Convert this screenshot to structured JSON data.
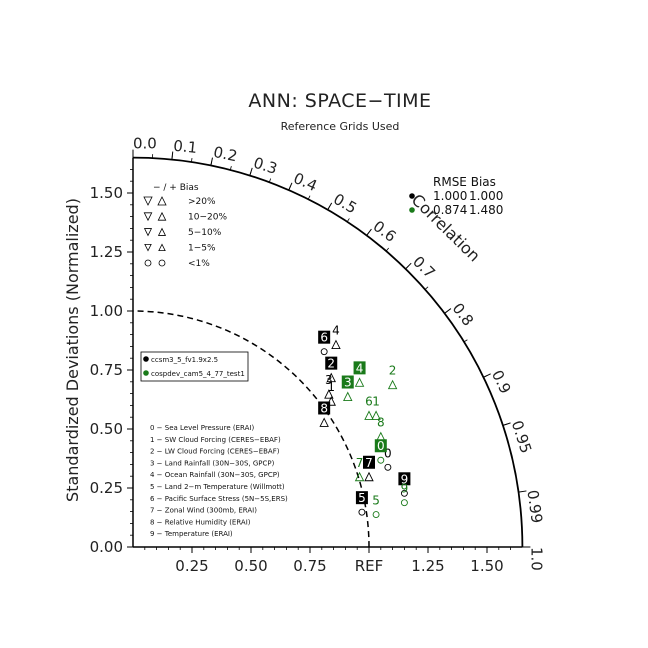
{
  "chart_data": {
    "type": "scatter",
    "subtype": "taylor-diagram",
    "title": "ANN: SPACE−TIME",
    "subtitle": "Reference Grids Used",
    "ylabel": "Standardized Deviations (Normalized)",
    "corr_axis_label": "Correlation",
    "std_range": [
      0,
      1.65
    ],
    "std_ticks": [
      {
        "value": 0.0,
        "label": "0.00"
      },
      {
        "value": 0.25,
        "label": "0.25"
      },
      {
        "value": 0.5,
        "label": "0.50"
      },
      {
        "value": 0.75,
        "label": "0.75"
      },
      {
        "value": 1.0,
        "label": "1.00"
      },
      {
        "value": 1.25,
        "label": "1.25"
      },
      {
        "value": 1.5,
        "label": "1.50"
      }
    ],
    "x_ticks": [
      {
        "value": 0.25,
        "label": "0.25"
      },
      {
        "value": 0.5,
        "label": "0.50"
      },
      {
        "value": 0.75,
        "label": "0.75"
      },
      {
        "value": 1.0,
        "label": "REF"
      },
      {
        "value": 1.25,
        "label": "1.25"
      },
      {
        "value": 1.5,
        "label": "1.50"
      }
    ],
    "corr_ticks": [
      {
        "value": 0.0,
        "label": "0.0"
      },
      {
        "value": 0.1,
        "label": "0.1"
      },
      {
        "value": 0.2,
        "label": "0.2"
      },
      {
        "value": 0.3,
        "label": "0.3"
      },
      {
        "value": 0.4,
        "label": "0.4"
      },
      {
        "value": 0.5,
        "label": "0.5"
      },
      {
        "value": 0.6,
        "label": "0.6"
      },
      {
        "value": 0.7,
        "label": "0.7"
      },
      {
        "value": 0.8,
        "label": "0.8"
      },
      {
        "value": 0.9,
        "label": "0.9"
      },
      {
        "value": 0.95,
        "label": "0.95"
      },
      {
        "value": 0.99,
        "label": "0.99"
      },
      {
        "value": 1.0,
        "label": "1.0"
      }
    ],
    "reference_arc_std": 1.0,
    "bias_legend": {
      "header": "− / +     Bias",
      "rows": [
        {
          "label": ">20%",
          "size": 1.0
        },
        {
          "label": "10−20%",
          "size": 0.8
        },
        {
          "label": "5−10%",
          "size": 0.62
        },
        {
          "label": "1−5%",
          "size": 0.42
        },
        {
          "label": "<1%",
          "size": 0.5,
          "circle": true
        }
      ]
    },
    "rmse_bias": {
      "header": "RMSE  Bias",
      "rows": [
        {
          "rmse": "1.000",
          "bias": "1.000",
          "color": "#000000"
        },
        {
          "rmse": "0.874",
          "bias": "1.480",
          "color": "#1a7a1a"
        }
      ]
    },
    "cases": [
      {
        "name": "ccsm3_5_fv1.9x2.5",
        "color": "#000000"
      },
      {
        "name": "cospdev_cam5_4_77_test1",
        "color": "#1a7a1a"
      }
    ],
    "variables": [
      "0 − Sea Level Pressure (ERAI)",
      "1 − SW Cloud Forcing (CERES−EBAF)",
      "2 − LW Cloud Forcing (CERES−EBAF)",
      "3 − Land Rainfall (30N−30S, GPCP)",
      "4 − Ocean Rainfall (30N−30S, GPCP)",
      "5 − Land 2−m Temperature (Willmott)",
      "6 − Pacific Surface Stress (5N−5S,ERS)",
      "7 − Zonal Wind (300mb, ERAI)",
      "8 − Relative Humidity (ERAI)",
      "9 − Temperature (ERAI)"
    ],
    "series": [
      {
        "name": "ccsm3_5_fv1.9x2.5",
        "color": "#000000",
        "points": [
          {
            "id": "0",
            "x": 1.08,
            "y": 0.38,
            "marker": "circle",
            "boxed": false
          },
          {
            "id": "1",
            "x": 0.84,
            "y": 0.66,
            "marker": "up",
            "boxed": false
          },
          {
            "id": "2",
            "x": 0.84,
            "y": 0.76,
            "marker": "up",
            "boxed": true
          },
          {
            "id": "3",
            "x": 0.83,
            "y": 0.69,
            "marker": "up",
            "boxed": false
          },
          {
            "id": "4",
            "x": 0.86,
            "y": 0.9,
            "marker": "up",
            "boxed": false
          },
          {
            "id": "5",
            "x": 0.97,
            "y": 0.19,
            "marker": "circle",
            "boxed": true
          },
          {
            "id": "6",
            "x": 0.81,
            "y": 0.87,
            "marker": "circle",
            "boxed": true
          },
          {
            "id": "7",
            "x": 1.0,
            "y": 0.34,
            "marker": "up",
            "boxed": true
          },
          {
            "id": "8",
            "x": 0.81,
            "y": 0.57,
            "marker": "up",
            "boxed": true
          },
          {
            "id": "9",
            "x": 1.15,
            "y": 0.27,
            "marker": "circle",
            "boxed": true
          }
        ]
      },
      {
        "name": "cospdev_cam5_4_77_test1",
        "color": "#1a7a1a",
        "points": [
          {
            "id": "0",
            "x": 1.05,
            "y": 0.41,
            "marker": "circle",
            "boxed": true
          },
          {
            "id": "1",
            "x": 1.03,
            "y": 0.6,
            "marker": "up",
            "boxed": false
          },
          {
            "id": "2",
            "x": 1.1,
            "y": 0.73,
            "marker": "up",
            "boxed": false
          },
          {
            "id": "3",
            "x": 0.91,
            "y": 0.68,
            "marker": "up",
            "boxed": true
          },
          {
            "id": "4",
            "x": 0.96,
            "y": 0.74,
            "marker": "up",
            "boxed": true
          },
          {
            "id": "5",
            "x": 1.03,
            "y": 0.18,
            "marker": "circle",
            "boxed": false
          },
          {
            "id": "6",
            "x": 1.0,
            "y": 0.6,
            "marker": "up",
            "boxed": false
          },
          {
            "id": "7",
            "x": 0.96,
            "y": 0.34,
            "marker": "up",
            "boxed": false
          },
          {
            "id": "8",
            "x": 1.05,
            "y": 0.51,
            "marker": "up",
            "boxed": false
          },
          {
            "id": "9",
            "x": 1.15,
            "y": 0.23,
            "marker": "circle",
            "boxed": false
          }
        ]
      }
    ]
  }
}
